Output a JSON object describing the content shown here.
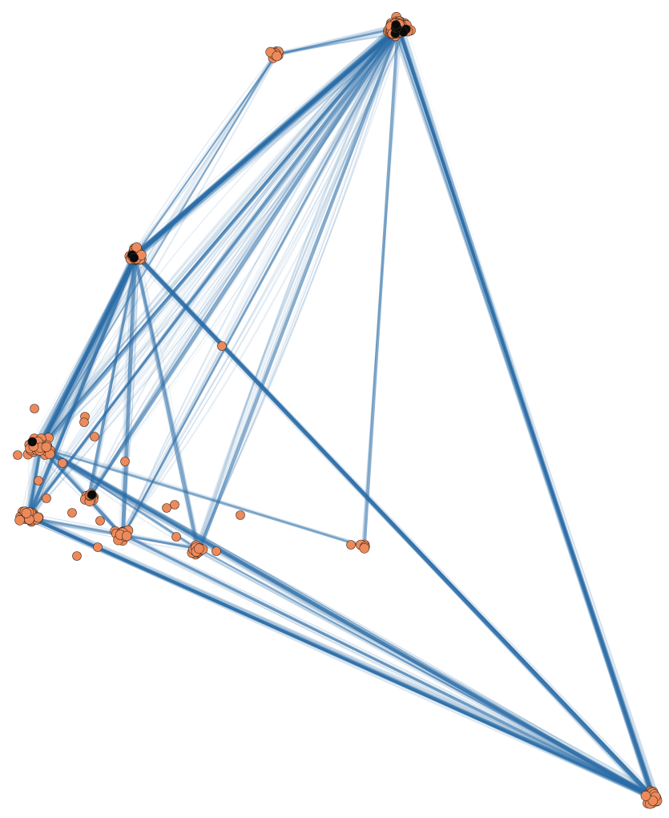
{
  "diagram": {
    "type": "network-graph",
    "style": {
      "edge_color": "#2b6ea8",
      "node_color": "#ee8a5a",
      "highlight_node_color": "#0a0a0a",
      "node_stroke_color": "#3a2a22",
      "background": "#ffffff"
    },
    "clusters": [
      {
        "id": "top",
        "size": 60,
        "highlighted": 7
      },
      {
        "id": "top-left-small",
        "size": 10,
        "highlighted": 0
      },
      {
        "id": "upper-middle",
        "size": 30,
        "highlighted": 2
      },
      {
        "id": "left",
        "size": 45,
        "highlighted": 1
      },
      {
        "id": "lower-left",
        "size": 35,
        "highlighted": 0
      },
      {
        "id": "lower-middle-a",
        "size": 12,
        "highlighted": 1
      },
      {
        "id": "lower-middle-b",
        "size": 18,
        "highlighted": 0
      },
      {
        "id": "lower-middle-c",
        "size": 15,
        "highlighted": 0
      },
      {
        "id": "right-small",
        "size": 5,
        "highlighted": 0
      },
      {
        "id": "bottom-right",
        "size": 25,
        "highlighted": 0
      }
    ]
  }
}
